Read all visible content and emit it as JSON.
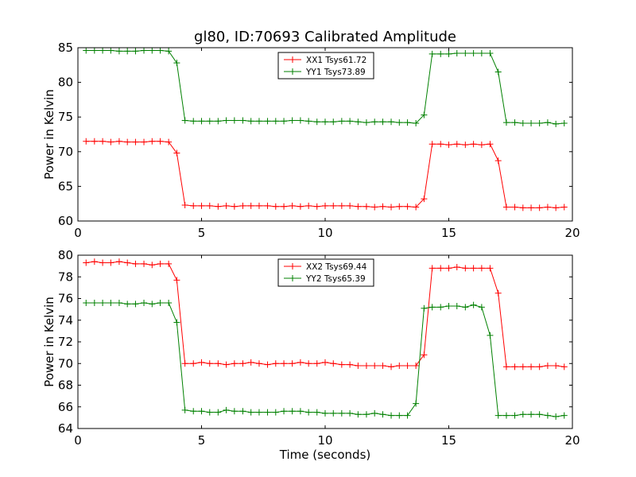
{
  "chart_data": [
    {
      "type": "line",
      "title": "gl80, ID:70693 Calibrated Amplitude",
      "xlabel": "",
      "ylabel": "Power in Kelvin",
      "xlim": [
        0,
        20
      ],
      "ylim": [
        60,
        85
      ],
      "xticks": [
        0,
        5,
        10,
        15,
        20
      ],
      "yticks": [
        60,
        65,
        70,
        75,
        80,
        85
      ],
      "grid": false,
      "legend_position": "top-center",
      "x": [
        0.33,
        0.67,
        1.0,
        1.33,
        1.67,
        2.0,
        2.33,
        2.67,
        3.0,
        3.33,
        3.67,
        4.0,
        4.33,
        4.67,
        5.0,
        5.33,
        5.67,
        6.0,
        6.33,
        6.67,
        7.0,
        7.33,
        7.67,
        8.0,
        8.33,
        8.67,
        9.0,
        9.33,
        9.67,
        10.0,
        10.33,
        10.67,
        11.0,
        11.33,
        11.67,
        12.0,
        12.33,
        12.67,
        13.0,
        13.33,
        13.67,
        14.0,
        14.33,
        14.67,
        15.0,
        15.33,
        15.67,
        16.0,
        16.33,
        16.67,
        17.0,
        17.33,
        17.67,
        18.0,
        18.33,
        18.67,
        19.0,
        19.33,
        19.67
      ],
      "series": [
        {
          "name": "XX1 Tsys61.72",
          "color": "#ff0000",
          "values": [
            71.5,
            71.5,
            71.5,
            71.4,
            71.5,
            71.4,
            71.4,
            71.4,
            71.5,
            71.5,
            71.4,
            69.8,
            62.3,
            62.2,
            62.2,
            62.2,
            62.1,
            62.2,
            62.1,
            62.2,
            62.2,
            62.2,
            62.2,
            62.1,
            62.1,
            62.2,
            62.1,
            62.2,
            62.1,
            62.2,
            62.2,
            62.2,
            62.2,
            62.1,
            62.1,
            62.0,
            62.1,
            62.0,
            62.1,
            62.1,
            62.0,
            63.2,
            71.1,
            71.1,
            71.0,
            71.1,
            71.0,
            71.1,
            71.0,
            71.1,
            68.7,
            62.0,
            62.0,
            61.9,
            61.9,
            61.9,
            62.0,
            61.9,
            62.0
          ]
        },
        {
          "name": "YY1 Tsys73.89",
          "color": "#008000",
          "values": [
            84.6,
            84.6,
            84.6,
            84.6,
            84.5,
            84.5,
            84.5,
            84.6,
            84.6,
            84.6,
            84.5,
            82.8,
            74.5,
            74.4,
            74.4,
            74.4,
            74.4,
            74.5,
            74.5,
            74.5,
            74.4,
            74.4,
            74.4,
            74.4,
            74.4,
            74.5,
            74.5,
            74.4,
            74.3,
            74.3,
            74.3,
            74.4,
            74.4,
            74.3,
            74.2,
            74.3,
            74.3,
            74.3,
            74.2,
            74.2,
            74.1,
            75.3,
            84.1,
            84.1,
            84.1,
            84.2,
            84.2,
            84.2,
            84.2,
            84.2,
            81.5,
            74.2,
            74.2,
            74.1,
            74.1,
            74.1,
            74.2,
            74.0,
            74.1
          ]
        }
      ]
    },
    {
      "type": "line",
      "title": "",
      "xlabel": "Time (seconds)",
      "ylabel": "Power in Kelvin",
      "xlim": [
        0,
        20
      ],
      "ylim": [
        64,
        80
      ],
      "xticks": [
        0,
        5,
        10,
        15,
        20
      ],
      "yticks": [
        64,
        66,
        68,
        70,
        72,
        74,
        76,
        78,
        80
      ],
      "grid": false,
      "legend_position": "top-center",
      "x": [
        0.33,
        0.67,
        1.0,
        1.33,
        1.67,
        2.0,
        2.33,
        2.67,
        3.0,
        3.33,
        3.67,
        4.0,
        4.33,
        4.67,
        5.0,
        5.33,
        5.67,
        6.0,
        6.33,
        6.67,
        7.0,
        7.33,
        7.67,
        8.0,
        8.33,
        8.67,
        9.0,
        9.33,
        9.67,
        10.0,
        10.33,
        10.67,
        11.0,
        11.33,
        11.67,
        12.0,
        12.33,
        12.67,
        13.0,
        13.33,
        13.67,
        14.0,
        14.33,
        14.67,
        15.0,
        15.33,
        15.67,
        16.0,
        16.33,
        16.67,
        17.0,
        17.33,
        17.67,
        18.0,
        18.33,
        18.67,
        19.0,
        19.33,
        19.67
      ],
      "series": [
        {
          "name": "XX2 Tsys69.44",
          "color": "#ff0000",
          "values": [
            79.3,
            79.4,
            79.3,
            79.3,
            79.4,
            79.3,
            79.2,
            79.2,
            79.1,
            79.2,
            79.2,
            77.7,
            70.0,
            70.0,
            70.1,
            70.0,
            70.0,
            69.9,
            70.0,
            70.0,
            70.1,
            70.0,
            69.9,
            70.0,
            70.0,
            70.0,
            70.1,
            70.0,
            70.0,
            70.1,
            70.0,
            69.9,
            69.9,
            69.8,
            69.8,
            69.8,
            69.8,
            69.7,
            69.8,
            69.8,
            69.8,
            70.8,
            78.8,
            78.8,
            78.8,
            78.9,
            78.8,
            78.8,
            78.8,
            78.8,
            76.5,
            69.7,
            69.7,
            69.7,
            69.7,
            69.7,
            69.8,
            69.8,
            69.7
          ]
        },
        {
          "name": "YY2 Tsys65.39",
          "color": "#008000",
          "values": [
            75.6,
            75.6,
            75.6,
            75.6,
            75.6,
            75.5,
            75.5,
            75.6,
            75.5,
            75.6,
            75.6,
            73.8,
            65.7,
            65.6,
            65.6,
            65.5,
            65.5,
            65.7,
            65.6,
            65.6,
            65.5,
            65.5,
            65.5,
            65.5,
            65.6,
            65.6,
            65.6,
            65.5,
            65.5,
            65.4,
            65.4,
            65.4,
            65.4,
            65.3,
            65.3,
            65.4,
            65.3,
            65.2,
            65.2,
            65.2,
            66.3,
            75.1,
            75.2,
            75.2,
            75.3,
            75.3,
            75.2,
            75.4,
            75.2,
            72.6,
            65.2,
            65.2,
            65.2,
            65.3,
            65.3,
            65.3,
            65.2,
            65.1,
            65.2
          ]
        }
      ]
    }
  ]
}
